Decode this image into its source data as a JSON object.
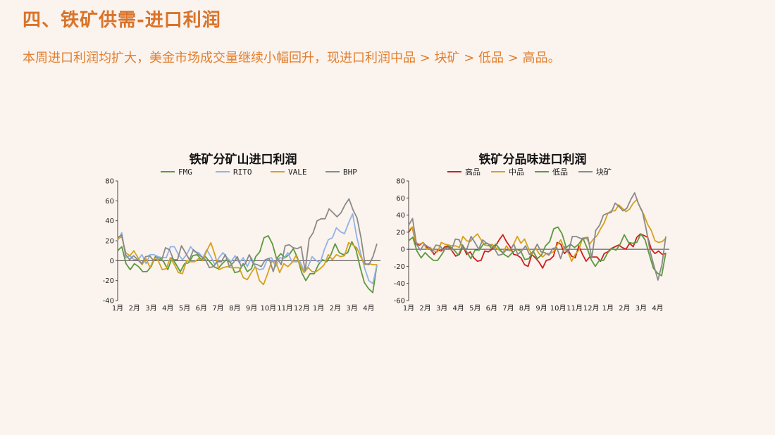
{
  "header": {
    "title": "四、铁矿供需-进口利润",
    "subtitle": "本周进口利润均扩大，美金市场成交量继续小幅回升，现进口利润中品 > 块矿 > 低品 > 高品。"
  },
  "chart_data": [
    {
      "type": "line",
      "title": "铁矿分矿山进口利润",
      "ylim": [
        -40,
        80
      ],
      "yticks": [
        -40,
        -20,
        0,
        20,
        40,
        60,
        80
      ],
      "xticks": [
        "1月",
        "2月",
        "3月",
        "4月",
        "5月",
        "6月",
        "7月",
        "8月",
        "9月",
        "10月",
        "11月",
        "12月",
        "1月",
        "2月",
        "3月",
        "4月"
      ],
      "grid": false,
      "legend_position": "top",
      "series": [
        {
          "name": "FMG",
          "color": "#5b9a3e",
          "values": [
            10,
            14,
            -3,
            -9,
            -3,
            -6,
            -11,
            -11,
            -6,
            4,
            3,
            -1,
            -9,
            3,
            -4,
            -11,
            -3,
            -2,
            5,
            6,
            1,
            4,
            -1,
            -6,
            -8,
            -3,
            1,
            -2,
            -12,
            -11,
            -3,
            -11,
            -8,
            4,
            9,
            23,
            25,
            17,
            2,
            7,
            3,
            6,
            12,
            3,
            -12,
            -20,
            -13,
            -13,
            -4,
            1,
            -1,
            6,
            17,
            8,
            6,
            8,
            19,
            11,
            -7,
            -22,
            -28,
            -32,
            -4
          ]
        },
        {
          "name": "RITO",
          "color": "#8fb3e8",
          "values": [
            20,
            28,
            3,
            5,
            1,
            1,
            6,
            -3,
            6,
            6,
            4,
            3,
            3,
            14,
            14,
            6,
            1,
            6,
            14,
            9,
            8,
            3,
            11,
            4,
            -4,
            3,
            8,
            3,
            -1,
            5,
            -2,
            3,
            -6,
            3,
            -7,
            -9,
            -8,
            2,
            3,
            -6,
            3,
            2,
            8,
            -1,
            -1,
            -1,
            -10,
            -6,
            4,
            0,
            -2,
            11,
            21,
            23,
            33,
            29,
            27,
            38,
            47,
            24,
            7,
            -8,
            -20,
            -23,
            -4
          ]
        },
        {
          "name": "VALE",
          "color": "#d4a21e",
          "values": [
            22,
            24,
            8,
            5,
            10,
            3,
            -4,
            2,
            -7,
            2,
            0,
            -9,
            -8,
            3,
            -4,
            -12,
            -13,
            0,
            -1,
            -1,
            2,
            0,
            10,
            18,
            6,
            -9,
            -7,
            -6,
            -7,
            -7,
            -7,
            -17,
            -19,
            -12,
            -6,
            -20,
            -24,
            -13,
            -1,
            -1,
            -12,
            -3,
            -6,
            -2,
            5,
            -4,
            -12,
            -7,
            -11,
            -11,
            -8,
            -4,
            6,
            1,
            6,
            4,
            5,
            18,
            16,
            13,
            4,
            -4,
            -3,
            -4,
            -4
          ]
        },
        {
          "name": "BHP",
          "color": "#8a8a8a",
          "values": [
            23,
            26,
            6,
            1,
            5,
            1,
            -3,
            4,
            5,
            0,
            2,
            0,
            13,
            11,
            1,
            1,
            15,
            8,
            1,
            11,
            7,
            4,
            1,
            -7,
            -6,
            -1,
            -1,
            6,
            -6,
            -2,
            4,
            -6,
            -3,
            6,
            -3,
            -4,
            -6,
            1,
            2,
            -11,
            3,
            -4,
            15,
            16,
            13,
            12,
            14,
            -10,
            22,
            28,
            40,
            42,
            42,
            52,
            48,
            44,
            48,
            56,
            62,
            51,
            43,
            23,
            -3,
            -4,
            4,
            17
          ]
        }
      ]
    },
    {
      "type": "line",
      "title": "铁矿分品味进口利润",
      "ylim": [
        -60,
        80
      ],
      "yticks": [
        -60,
        -40,
        -20,
        0,
        20,
        40,
        60,
        80
      ],
      "xticks": [
        "1月",
        "2月",
        "3月",
        "4月",
        "5月",
        "6月",
        "7月",
        "8月",
        "9月",
        "10月",
        "11月",
        "12月",
        "1月",
        "2月",
        "3月",
        "4月"
      ],
      "grid": false,
      "legend_position": "top",
      "series": [
        {
          "name": "高品",
          "color": "#cc1f1f",
          "values": [
            20,
            26,
            6,
            5,
            8,
            2,
            2,
            -6,
            -1,
            -2,
            3,
            4,
            -2,
            -8,
            -6,
            4,
            -6,
            -3,
            -10,
            -14,
            -13,
            -2,
            -3,
            0,
            4,
            11,
            17,
            9,
            3,
            -6,
            -7,
            -10,
            -18,
            -20,
            -6,
            -10,
            -15,
            -22,
            -13,
            -12,
            -8,
            8,
            6,
            -5,
            -1,
            -8,
            -10,
            4,
            -6,
            -14,
            -9,
            -9,
            -9,
            -14,
            -5,
            -3,
            1,
            3,
            5,
            2,
            0,
            7,
            3,
            14,
            18,
            16,
            14,
            0,
            -5,
            -2,
            -6,
            -5
          ]
        },
        {
          "name": "中品",
          "color": "#d4a21e",
          "values": [
            22,
            26,
            8,
            6,
            8,
            0,
            2,
            -2,
            -3,
            8,
            6,
            5,
            4,
            4,
            2,
            15,
            10,
            9,
            14,
            18,
            11,
            5,
            4,
            6,
            2,
            -1,
            -4,
            4,
            -2,
            6,
            15,
            7,
            12,
            2,
            -6,
            2,
            -5,
            -9,
            -5,
            -5,
            -3,
            5,
            11,
            0,
            -3,
            -14,
            -6,
            -1,
            13,
            14,
            6,
            12,
            16,
            24,
            31,
            42,
            45,
            45,
            52,
            48,
            44,
            47,
            54,
            58,
            48,
            40,
            29,
            22,
            10,
            8,
            9,
            13
          ]
        },
        {
          "name": "低品",
          "color": "#5b9a3e",
          "values": [
            10,
            14,
            -2,
            -10,
            -4,
            -9,
            -13,
            -13,
            -6,
            2,
            3,
            -1,
            -7,
            5,
            -3,
            -11,
            -1,
            -1,
            6,
            7,
            1,
            6,
            0,
            -6,
            -9,
            -4,
            0,
            -2,
            -12,
            -11,
            -2,
            -11,
            -7,
            4,
            9,
            24,
            26,
            18,
            2,
            6,
            2,
            6,
            13,
            2,
            -12,
            -20,
            -13,
            -13,
            -4,
            1,
            -1,
            6,
            17,
            8,
            7,
            8,
            18,
            11,
            -6,
            -22,
            -28,
            -31,
            -4
          ]
        },
        {
          "name": "块矿",
          "color": "#8a8a8a",
          "values": [
            28,
            36,
            6,
            -1,
            6,
            3,
            -3,
            5,
            4,
            -1,
            2,
            -1,
            12,
            11,
            0,
            1,
            15,
            8,
            0,
            11,
            7,
            5,
            1,
            -7,
            -6,
            -1,
            -1,
            6,
            -6,
            -2,
            4,
            -6,
            -3,
            6,
            -3,
            -4,
            -7,
            1,
            2,
            -11,
            3,
            -4,
            15,
            15,
            13,
            12,
            14,
            -10,
            22,
            28,
            40,
            42,
            43,
            54,
            50,
            45,
            48,
            58,
            66,
            53,
            44,
            23,
            -3,
            -20,
            -36,
            -18,
            15
          ]
        }
      ]
    }
  ]
}
